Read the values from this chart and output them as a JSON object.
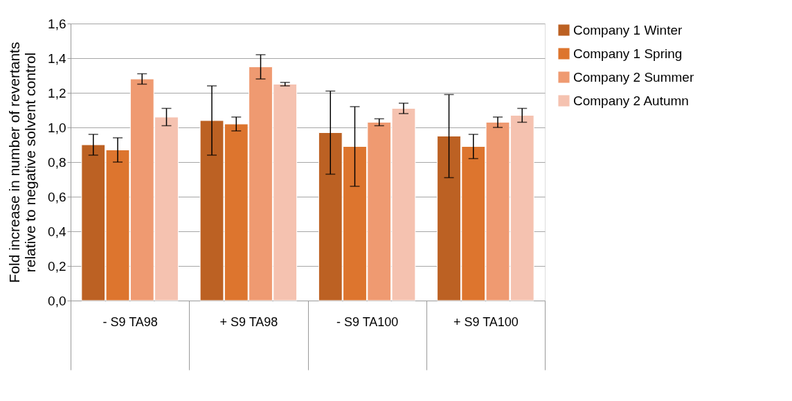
{
  "chart_data": {
    "type": "bar",
    "ylabel": "Fold increase in number of revertants relative to negative solvent control",
    "categories": [
      "- S9\nTA98",
      "+ S9\nTA98",
      "- S9\nTA100",
      "+ S9\nTA100"
    ],
    "series": [
      {
        "name": "Company 1 Winter",
        "color": "#bc6123",
        "values": [
          0.9,
          1.04,
          0.97,
          0.95
        ],
        "errors": [
          0.06,
          0.2,
          0.24,
          0.24
        ]
      },
      {
        "name": "Company 1 Spring",
        "color": "#dd752e",
        "values": [
          0.87,
          1.02,
          0.89,
          0.89
        ],
        "errors": [
          0.07,
          0.04,
          0.23,
          0.07
        ]
      },
      {
        "name": "Company 2 Summer",
        "color": "#ef9a71",
        "values": [
          1.28,
          1.35,
          1.03,
          1.03
        ],
        "errors": [
          0.03,
          0.07,
          0.02,
          0.03
        ]
      },
      {
        "name": "Company 2 Autumn",
        "color": "#f5c2b0",
        "values": [
          1.06,
          1.25,
          1.11,
          1.07
        ],
        "errors": [
          0.05,
          0.01,
          0.03,
          0.04
        ]
      }
    ],
    "ylim": [
      0,
      1.6
    ],
    "yticks": [
      {
        "value": 0,
        "label": "0,0"
      },
      {
        "value": 0.2,
        "label": "0,2"
      },
      {
        "value": 0.4,
        "label": "0,4"
      },
      {
        "value": 0.6,
        "label": "0,6"
      },
      {
        "value": 0.8,
        "label": "0,8"
      },
      {
        "value": 1.0,
        "label": "1,0"
      },
      {
        "value": 1.2,
        "label": "1,2"
      },
      {
        "value": 1.4,
        "label": "1,4"
      },
      {
        "value": 1.6,
        "label": "1,6"
      }
    ],
    "grid": "y",
    "legend": "right"
  }
}
